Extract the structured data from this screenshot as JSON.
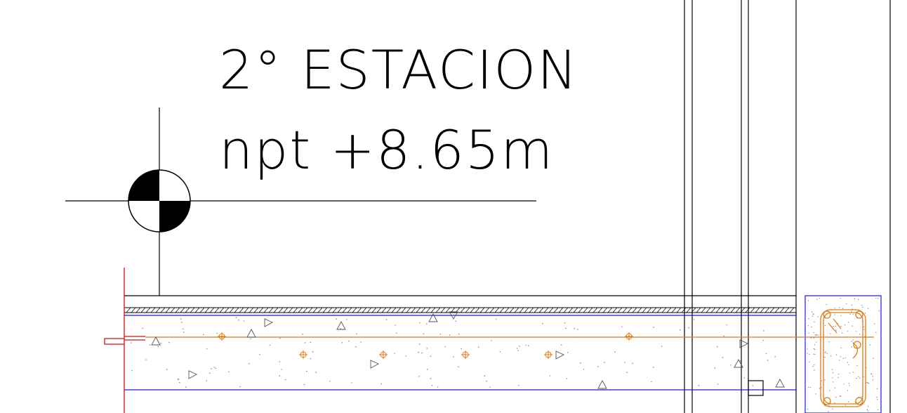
{
  "drawing": {
    "title": "2° ESTACION",
    "level": "npt +8.65m"
  },
  "colors": {
    "linework": "#000000",
    "concrete_outline": "#1a1ae0",
    "rebar": "#e07a10",
    "cut_line": "#d01010",
    "aggregate": "#8a8a8a"
  },
  "icons": {
    "level_marker": "level-datum-symbol",
    "aggregate": "triangle-aggregate-symbol",
    "rebar": "rebar-cross-symbol"
  }
}
